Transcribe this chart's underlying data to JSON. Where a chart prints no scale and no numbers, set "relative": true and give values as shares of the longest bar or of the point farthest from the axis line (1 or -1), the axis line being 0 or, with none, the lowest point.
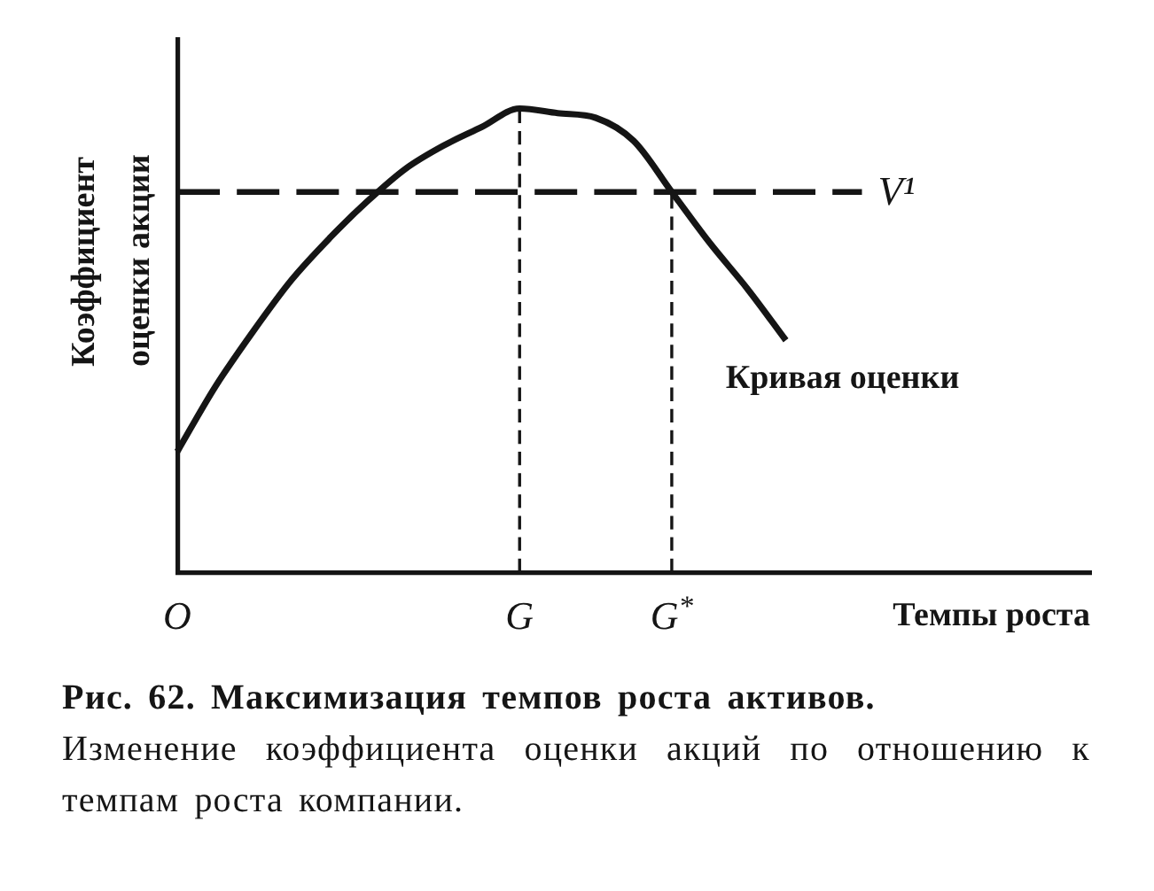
{
  "chart_data": {
    "type": "line",
    "relative": true,
    "marker": "none",
    "title": "Рис. 62. Максимизация темпов роста активов.",
    "subtitle": "Изменение коэффициента оценки акций по отношению к темпам роста компании.",
    "ylabel": "Коэффициент оценки акции",
    "xlabel": "Темпы роста",
    "categories": [
      "O",
      null,
      null,
      null,
      null,
      null,
      null,
      null,
      null,
      "G",
      null,
      null,
      null,
      "G$^{*}$",
      null,
      null,
      null,
      null,
      null,
      null,
      null,
      null,
      null,
      null,
      null
    ],
    "series": [
      {
        "name": "Кривая оценки",
        "color": "#151515",
        "line_style": "solid",
        "values": [
          0.26,
          0.4,
          0.52,
          0.63,
          0.72,
          0.8,
          0.87,
          0.92,
          0.96,
          1,
          0.99,
          0.98,
          0.93,
          0.82,
          0.71,
          0.61,
          0.5,
          null,
          null,
          null,
          null,
          null,
          null,
          null,
          null
        ]
      },
      {
        "name": "V¹",
        "color": "#151515",
        "line_style": "dashed",
        "values": [
          0.82,
          0.82,
          0.82,
          0.82,
          0.82,
          0.82,
          0.82,
          0.82,
          0.82,
          0.82,
          0.82,
          0.82,
          0.82,
          0.82,
          0.82,
          0.82,
          0.82,
          0.82,
          0.82,
          null,
          null,
          null,
          null,
          null,
          null
        ]
      }
    ],
    "ref_lines": [
      {
        "axis": "x",
        "value": "G",
        "color": "#151515",
        "line_style": "dashed"
      },
      {
        "axis": "x",
        "value": "G$^{*}$",
        "color": "#151515",
        "line_style": "dashed"
      }
    ]
  }
}
